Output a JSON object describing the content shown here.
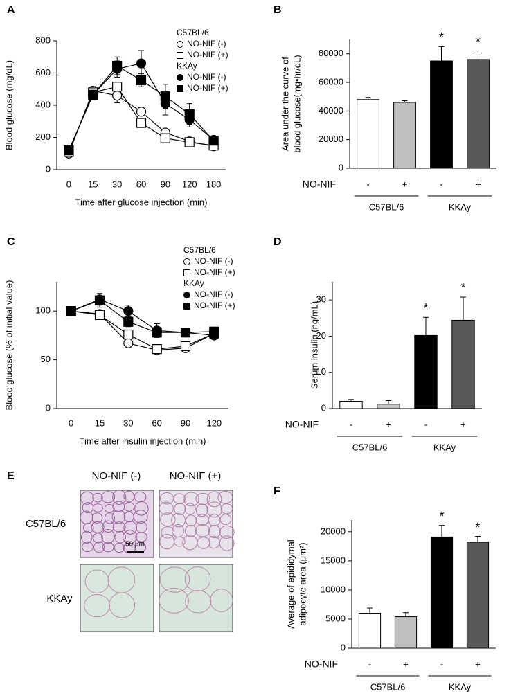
{
  "chart_data": [
    {
      "type": "line",
      "panel": "A",
      "xlabel": "Time after glucose injection (min)",
      "ylabel": "Blood glucose (mg/dL)",
      "categories": [
        "0",
        "15",
        "30",
        "60",
        "90",
        "120",
        "180"
      ],
      "ylim": [
        0,
        800
      ],
      "yticks": [
        0,
        200,
        400,
        600,
        800
      ],
      "series": [
        {
          "group": "C57BL/6",
          "name": "NO-NIF (-)",
          "marker": "circle",
          "color": "#ffffff",
          "values": [
            100,
            490,
            460,
            360,
            230,
            175,
            145
          ],
          "errors": [
            10,
            25,
            45,
            15,
            15,
            15,
            15
          ]
        },
        {
          "group": "C57BL/6",
          "name": "NO-NIF (+)",
          "marker": "square",
          "color": "#ffffff",
          "values": [
            110,
            480,
            515,
            290,
            195,
            170,
            150
          ],
          "errors": [
            10,
            30,
            20,
            15,
            15,
            15,
            15
          ]
        },
        {
          "group": "KKAy",
          "name": "NO-NIF (-)",
          "marker": "circle",
          "color": "#000000",
          "values": [
            120,
            465,
            625,
            660,
            410,
            310,
            185
          ],
          "errors": [
            15,
            30,
            50,
            80,
            70,
            45,
            20
          ]
        },
        {
          "group": "KKAy",
          "name": "NO-NIF (+)",
          "marker": "square",
          "color": "#000000",
          "values": [
            120,
            465,
            645,
            555,
            455,
            345,
            180
          ],
          "errors": [
            15,
            30,
            55,
            40,
            75,
            65,
            20
          ]
        }
      ]
    },
    {
      "type": "bar",
      "panel": "B",
      "ylabel": [
        "Area under the curve of",
        "blood glucose(mg•hr/dL)"
      ],
      "x_row_title": "NO-NIF",
      "categories": [
        "-",
        "+",
        "-",
        "+"
      ],
      "group_labels": [
        "C57BL/6",
        "KKAy"
      ],
      "values": [
        48000,
        46000,
        75000,
        76000
      ],
      "errors": [
        1500,
        1200,
        10000,
        6000
      ],
      "significance": [
        null,
        null,
        "*",
        "*"
      ],
      "colors": [
        "#ffffff",
        "#bfbfbf",
        "#000000",
        "#595959"
      ],
      "ylim": [
        0,
        90000
      ],
      "yticks": [
        0,
        20000,
        40000,
        60000,
        80000
      ]
    },
    {
      "type": "line",
      "panel": "C",
      "xlabel": "Time after insulin injection (min)",
      "ylabel": "Blood glucose (% of initial value)",
      "categories": [
        "0",
        "15",
        "30",
        "60",
        "90",
        "120"
      ],
      "ylim": [
        0,
        130
      ],
      "yticks": [
        0,
        50,
        100
      ],
      "series": [
        {
          "group": "C57BL/6",
          "name": "NO-NIF (-)",
          "marker": "circle",
          "color": "#ffffff",
          "values": [
            100,
            97,
            67,
            60,
            62,
            77
          ],
          "errors": [
            2,
            3,
            3,
            3,
            4,
            4
          ]
        },
        {
          "group": "C57BL/6",
          "name": "NO-NIF (+)",
          "marker": "square",
          "color": "#ffffff",
          "values": [
            100,
            96,
            76,
            61,
            64,
            77
          ],
          "errors": [
            2,
            3,
            4,
            3,
            4,
            4
          ]
        },
        {
          "group": "KKAy",
          "name": "NO-NIF (-)",
          "marker": "circle",
          "color": "#000000",
          "values": [
            100,
            112,
            100,
            80,
            78,
            75
          ],
          "errors": [
            2,
            6,
            6,
            7,
            4,
            4
          ]
        },
        {
          "group": "KKAy",
          "name": "NO-NIF (+)",
          "marker": "square",
          "color": "#000000",
          "values": [
            100,
            111,
            89,
            78,
            78,
            79
          ],
          "errors": [
            2,
            7,
            5,
            5,
            4,
            4
          ]
        }
      ]
    },
    {
      "type": "bar",
      "panel": "D",
      "ylabel": [
        "Serum insulin (ng/mL)"
      ],
      "x_row_title": "NO-NIF",
      "categories": [
        "-",
        "+",
        "-",
        "+"
      ],
      "group_labels": [
        "C57BL/6",
        "KKAy"
      ],
      "values": [
        2.0,
        1.2,
        20.2,
        24.4
      ],
      "errors": [
        0.5,
        1.0,
        5.0,
        6.4
      ],
      "significance": [
        null,
        null,
        "*",
        "*"
      ],
      "colors": [
        "#ffffff",
        "#bfbfbf",
        "#000000",
        "#595959"
      ],
      "ylim": [
        0,
        35
      ],
      "yticks": [
        0,
        10,
        20,
        30
      ]
    },
    {
      "type": "bar",
      "panel": "F",
      "ylabel": [
        "Average of epididymal",
        "adipocyte area (μm²)"
      ],
      "x_row_title": "NO-NIF",
      "categories": [
        "-",
        "+",
        "-",
        "+"
      ],
      "group_labels": [
        "C57BL/6",
        "KKAy"
      ],
      "values": [
        6000,
        5400,
        19100,
        18200
      ],
      "errors": [
        900,
        700,
        2000,
        1000
      ],
      "significance": [
        null,
        null,
        "*",
        "*"
      ],
      "colors": [
        "#ffffff",
        "#bfbfbf",
        "#000000",
        "#595959"
      ],
      "ylim": [
        0,
        22000
      ],
      "yticks": [
        0,
        5000,
        10000,
        15000,
        20000
      ]
    }
  ],
  "micrograph": {
    "panel": "E",
    "columns": [
      "NO-NIF (-)",
      "NO-NIF (+)"
    ],
    "rows": [
      "C57BL/6",
      "KKAy"
    ],
    "scale_bar": "50 µm"
  }
}
